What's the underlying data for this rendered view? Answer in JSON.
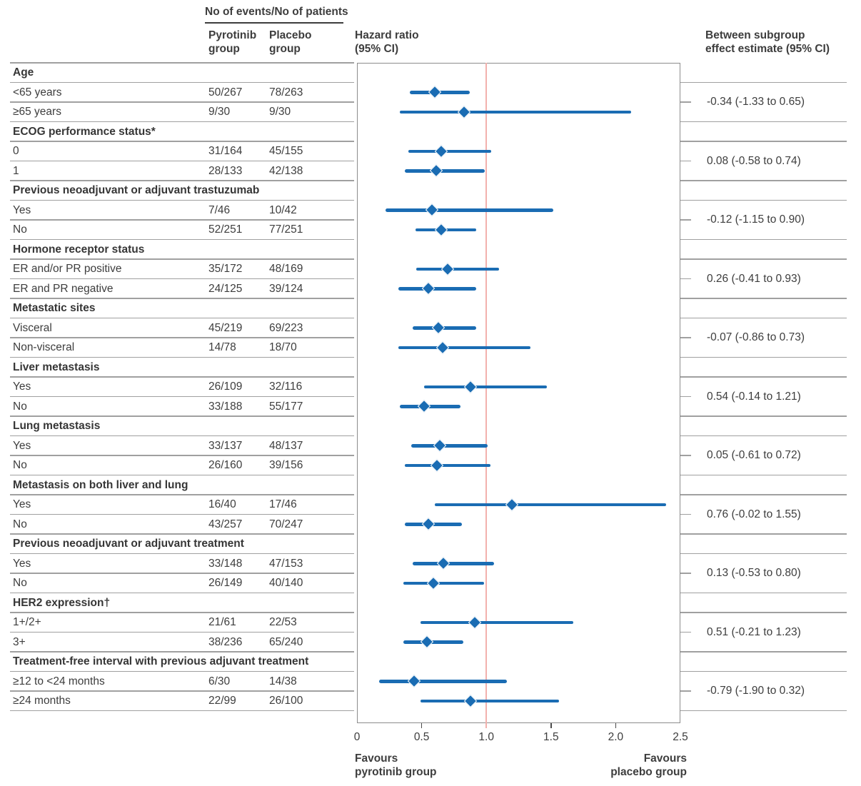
{
  "header": {
    "events_patients": "No of events/No of patients",
    "col_pyrotinib": "Pyrotinib\ngroup",
    "col_placebo": "Placebo\ngroup",
    "hazard_ratio": "Hazard ratio\n(95% CI)",
    "between_subgroup": "Between subgroup\neffect estimate (95% CI)"
  },
  "colors": {
    "marker_blue": "#1a6cb3",
    "reference_red": "#f2b1ad",
    "grid_gray": "#a0a0a0",
    "box_gray": "#8c8c8c",
    "tick_dark": "#4a4a4a",
    "text": "#3d3d3d"
  },
  "chart_data": {
    "type": "forest",
    "title": "",
    "xlabel_ticks": [
      "0",
      "0.5",
      "1.0",
      "1.5",
      "2.0",
      "2.5"
    ],
    "x_tick_values": [
      0,
      0.5,
      1.0,
      1.5,
      2.0,
      2.5
    ],
    "axis_min": 0,
    "axis_max": 2.5,
    "reference_line": 1.0,
    "favours_left": "Favours\npyrotinib group",
    "favours_right": "Favours\nplacebo group",
    "groups": [
      {
        "label": "Age",
        "estimate": "-0.34 (-1.33 to 0.65)",
        "rows": [
          {
            "label": "<65 years",
            "pyrotinib": "50/267",
            "placebo": "78/263",
            "hr": 0.6,
            "lo": 0.41,
            "hi": 0.87
          },
          {
            "label": "≥65 years",
            "pyrotinib": "9/30",
            "placebo": "9/30",
            "hr": 0.83,
            "lo": 0.33,
            "hi": 2.12
          }
        ]
      },
      {
        "label": "ECOG performance status*",
        "estimate": "0.08 (-0.58 to 0.74)",
        "rows": [
          {
            "label": "0",
            "pyrotinib": "31/164",
            "placebo": "45/155",
            "hr": 0.65,
            "lo": 0.4,
            "hi": 1.04
          },
          {
            "label": "1",
            "pyrotinib": "28/133",
            "placebo": "42/138",
            "hr": 0.61,
            "lo": 0.37,
            "hi": 0.99
          }
        ]
      },
      {
        "label": "Previous neoadjuvant or adjuvant trastuzumab",
        "estimate": "-0.12 (-1.15 to 0.90)",
        "rows": [
          {
            "label": "Yes",
            "pyrotinib": "7/46",
            "placebo": "10/42",
            "hr": 0.58,
            "lo": 0.22,
            "hi": 1.52
          },
          {
            "label": "No",
            "pyrotinib": "52/251",
            "placebo": "77/251",
            "hr": 0.65,
            "lo": 0.45,
            "hi": 0.92
          }
        ]
      },
      {
        "label": "Hormone receptor status",
        "estimate": "0.26 (-0.41 to 0.93)",
        "rows": [
          {
            "label": "ER and/or PR positive",
            "pyrotinib": "35/172",
            "placebo": "48/169",
            "hr": 0.7,
            "lo": 0.46,
            "hi": 1.1
          },
          {
            "label": "ER and PR negative",
            "pyrotinib": "24/125",
            "placebo": "39/124",
            "hr": 0.55,
            "lo": 0.32,
            "hi": 0.92
          }
        ]
      },
      {
        "label": "Metastatic sites",
        "estimate": "-0.07 (-0.86 to 0.73)",
        "rows": [
          {
            "label": "Visceral",
            "pyrotinib": "45/219",
            "placebo": "69/223",
            "hr": 0.63,
            "lo": 0.43,
            "hi": 0.92
          },
          {
            "label": "Non-visceral",
            "pyrotinib": "14/78",
            "placebo": "18/70",
            "hr": 0.66,
            "lo": 0.32,
            "hi": 1.34
          }
        ]
      },
      {
        "label": "Liver metastasis",
        "estimate": "0.54 (-0.14 to 1.21)",
        "rows": [
          {
            "label": "Yes",
            "pyrotinib": "26/109",
            "placebo": "32/116",
            "hr": 0.88,
            "lo": 0.52,
            "hi": 1.47
          },
          {
            "label": "No",
            "pyrotinib": "33/188",
            "placebo": "55/177",
            "hr": 0.52,
            "lo": 0.33,
            "hi": 0.8
          }
        ]
      },
      {
        "label": "Lung metastasis",
        "estimate": "0.05 (-0.61 to 0.72)",
        "rows": [
          {
            "label": "Yes",
            "pyrotinib": "33/137",
            "placebo": "48/137",
            "hr": 0.64,
            "lo": 0.42,
            "hi": 1.01
          },
          {
            "label": "No",
            "pyrotinib": "26/160",
            "placebo": "39/156",
            "hr": 0.62,
            "lo": 0.37,
            "hi": 1.03
          }
        ]
      },
      {
        "label": "Metastasis on both liver and lung",
        "estimate": "0.76 (-0.02 to 1.55)",
        "rows": [
          {
            "label": "Yes",
            "pyrotinib": "16/40",
            "placebo": "17/46",
            "hr": 1.2,
            "lo": 0.6,
            "hi": 2.39
          },
          {
            "label": "No",
            "pyrotinib": "43/257",
            "placebo": "70/247",
            "hr": 0.55,
            "lo": 0.37,
            "hi": 0.81
          }
        ]
      },
      {
        "label": "Previous neoadjuvant or adjuvant treatment",
        "estimate": "0.13 (-0.53 to 0.80)",
        "rows": [
          {
            "label": "Yes",
            "pyrotinib": "33/148",
            "placebo": "47/153",
            "hr": 0.67,
            "lo": 0.43,
            "hi": 1.06
          },
          {
            "label": "No",
            "pyrotinib": "26/149",
            "placebo": "40/140",
            "hr": 0.59,
            "lo": 0.36,
            "hi": 0.98
          }
        ]
      },
      {
        "label": "HER2 expression†",
        "estimate": "0.51 (-0.21 to 1.23)",
        "rows": [
          {
            "label": "1+/2+",
            "pyrotinib": "21/61",
            "placebo": "22/53",
            "hr": 0.91,
            "lo": 0.49,
            "hi": 1.67
          },
          {
            "label": "3+",
            "pyrotinib": "38/236",
            "placebo": "65/240",
            "hr": 0.54,
            "lo": 0.36,
            "hi": 0.82
          }
        ]
      },
      {
        "label": "Treatment-free interval with previous adjuvant treatment",
        "estimate": "-0.79 (-1.90 to 0.32)",
        "rows": [
          {
            "label": "≥12 to <24 months",
            "pyrotinib": "6/30",
            "placebo": "14/38",
            "hr": 0.44,
            "lo": 0.17,
            "hi": 1.16
          },
          {
            "label": "≥24 months",
            "pyrotinib": "22/99",
            "placebo": "26/100",
            "hr": 0.88,
            "lo": 0.49,
            "hi": 1.56
          }
        ]
      }
    ]
  }
}
